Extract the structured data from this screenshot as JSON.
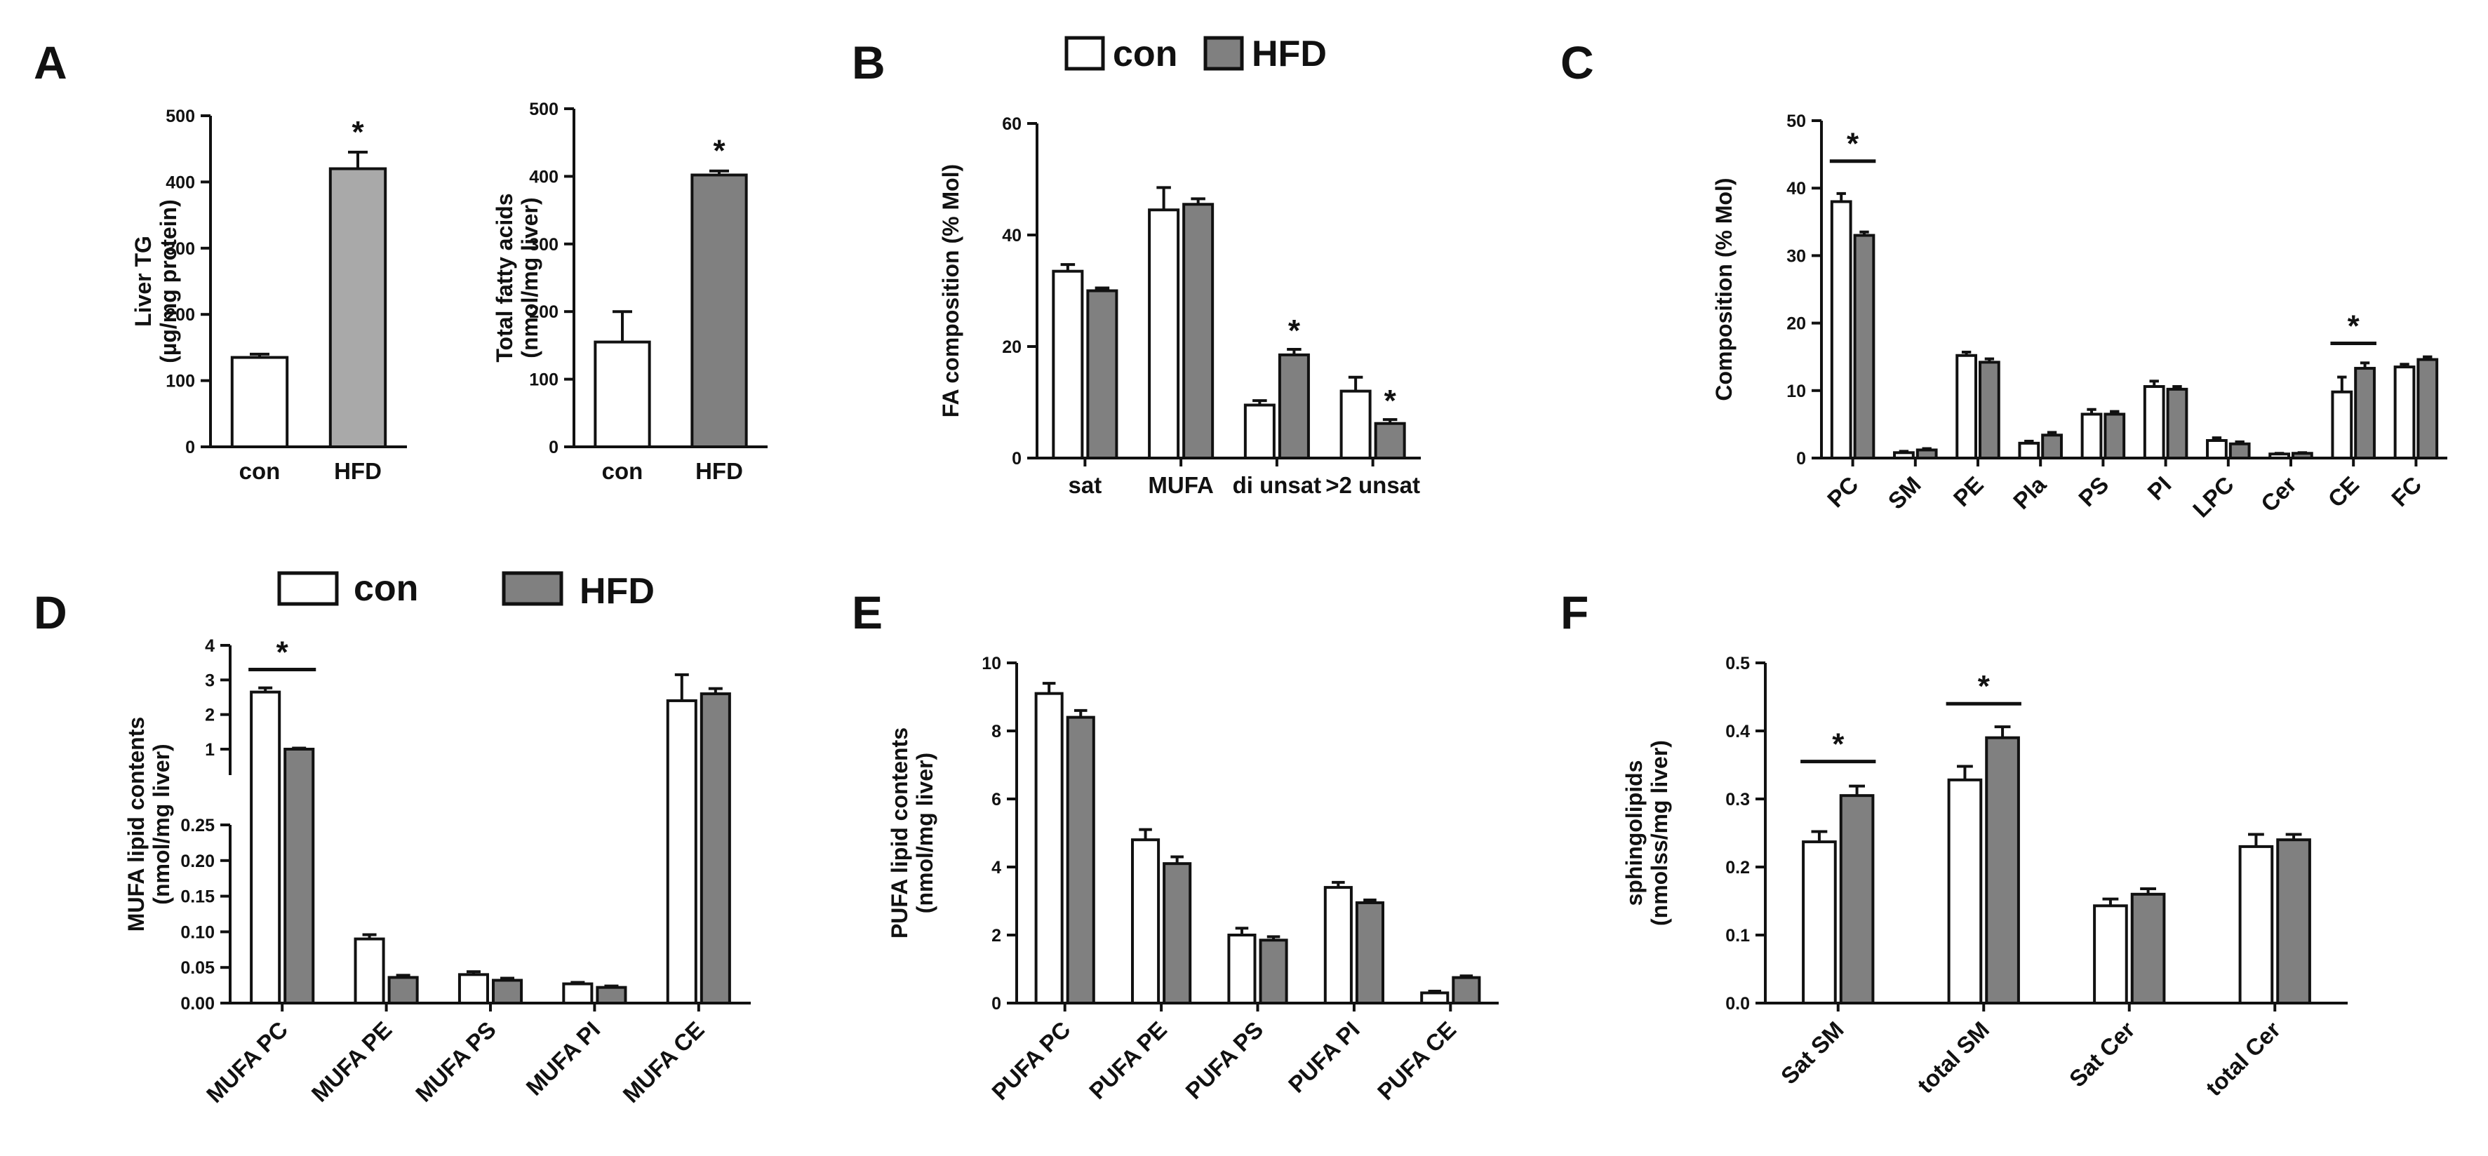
{
  "colors": {
    "con_fill": "#ffffff",
    "hfd_fill_a": "#a9a9a9",
    "hfd_fill": "#808080",
    "stroke": "#111111",
    "background": "#ffffff"
  },
  "legend": {
    "con": "con",
    "hfd": "HFD"
  },
  "significance_marker": "*",
  "chart_data": [
    {
      "id": "A1",
      "panel": "A",
      "type": "bar",
      "ylabel_lines": [
        "Liver TG",
        "(µg/mg protein)"
      ],
      "ylim": [
        0,
        500
      ],
      "yticks": [
        0,
        100,
        200,
        300,
        400,
        500
      ],
      "categories": [
        "con",
        "HFD"
      ],
      "values": [
        135,
        420
      ],
      "errors": [
        5,
        25
      ],
      "significant": [
        false,
        true
      ]
    },
    {
      "id": "A2",
      "type": "bar",
      "ylabel_lines": [
        "Total fatty acids",
        "(nmol/mg liver)"
      ],
      "ylim": [
        0,
        500
      ],
      "yticks": [
        0,
        100,
        200,
        300,
        400,
        500
      ],
      "categories": [
        "con",
        "HFD"
      ],
      "values": [
        155,
        402
      ],
      "errors": [
        45,
        6
      ],
      "significant": [
        false,
        true
      ]
    },
    {
      "id": "B",
      "panel": "B",
      "type": "bar",
      "ylabel_lines": [
        "FA composition (% Mol)"
      ],
      "ylim": [
        0,
        60
      ],
      "yticks": [
        0,
        20,
        40,
        60
      ],
      "categories": [
        "sat",
        "MUFA",
        "di unsat",
        ">2 unsat"
      ],
      "series": [
        {
          "name": "con",
          "values": [
            33.5,
            44.5,
            9.5,
            12
          ],
          "errors": [
            1.2,
            4,
            0.8,
            2.5
          ]
        },
        {
          "name": "HFD",
          "values": [
            30,
            45.5,
            18.5,
            6.2
          ],
          "errors": [
            0.5,
            1,
            1,
            0.7
          ]
        }
      ],
      "stars": [
        {
          "category": 2,
          "series": 1
        },
        {
          "category": 3,
          "series": 1
        }
      ]
    },
    {
      "id": "C",
      "panel": "C",
      "type": "bar",
      "ylabel_lines": [
        "Composition (% Mol)"
      ],
      "ylim": [
        0,
        50
      ],
      "yticks": [
        0,
        10,
        20,
        30,
        40,
        50
      ],
      "categories": [
        "PC",
        "SM",
        "PE",
        "Pla",
        "PS",
        "PI",
        "LPC",
        "Cer",
        "CE",
        "FC"
      ],
      "series": [
        {
          "name": "con",
          "values": [
            38,
            0.8,
            15.2,
            2.2,
            6.5,
            10.6,
            2.6,
            0.6,
            9.8,
            13.5
          ],
          "errors": [
            1.2,
            0.2,
            0.5,
            0.3,
            0.7,
            0.8,
            0.4,
            0.1,
            2.2,
            0.4
          ]
        },
        {
          "name": "HFD",
          "values": [
            33,
            1.2,
            14.2,
            3.4,
            6.5,
            10.2,
            2.1,
            0.7,
            13.3,
            14.6
          ],
          "errors": [
            0.5,
            0.2,
            0.5,
            0.4,
            0.4,
            0.4,
            0.3,
            0.1,
            0.8,
            0.4
          ]
        }
      ],
      "sig_bars": [
        {
          "category": 0,
          "level": 44
        },
        {
          "category": 8,
          "level": 17
        }
      ]
    },
    {
      "id": "D",
      "panel": "D",
      "type": "bar",
      "ylabel_lines": [
        "MUFA lipid contents",
        "(nmol/mg liver)"
      ],
      "axis_break": {
        "lower_range": [
          0,
          0.25
        ],
        "upper_range": [
          0.25,
          4
        ]
      },
      "yticks_lower": [
        0.0,
        0.05,
        0.1,
        0.15,
        0.2,
        0.25
      ],
      "ytick_lower_labels": [
        "0.00",
        "0.05",
        "0.10",
        "0.15",
        "0.20",
        "0.25"
      ],
      "yticks_upper": [
        1,
        2,
        3,
        4
      ],
      "categories": [
        "MUFA PC",
        "MUFA PE",
        "MUFA PS",
        "MUFA PI",
        "MUFA CE"
      ],
      "series": [
        {
          "name": "con",
          "values": [
            2.65,
            0.09,
            0.04,
            0.027,
            2.4
          ],
          "errors": [
            0.12,
            0.006,
            0.004,
            0.002,
            0.75
          ]
        },
        {
          "name": "HFD",
          "values": [
            1.0,
            0.036,
            0.032,
            0.022,
            2.6
          ],
          "errors": [
            0.03,
            0.003,
            0.003,
            0.002,
            0.15
          ]
        }
      ],
      "sig_bars": [
        {
          "category": 0,
          "level": 3.3
        }
      ]
    },
    {
      "id": "E",
      "panel": "E",
      "type": "bar",
      "ylabel_lines": [
        "PUFA lipid contents",
        "(nmol/mg liver)"
      ],
      "ylim": [
        0,
        10
      ],
      "yticks": [
        0,
        2,
        4,
        6,
        8,
        10
      ],
      "categories": [
        "PUFA PC",
        "PUFA PE",
        "PUFA PS",
        "PUFA PI",
        "PUFA CE"
      ],
      "series": [
        {
          "name": "con",
          "values": [
            9.1,
            4.8,
            2.0,
            3.4,
            0.3
          ],
          "errors": [
            0.3,
            0.3,
            0.2,
            0.15,
            0.05
          ]
        },
        {
          "name": "HFD",
          "values": [
            8.4,
            4.1,
            1.85,
            2.95,
            0.75
          ],
          "errors": [
            0.2,
            0.2,
            0.1,
            0.08,
            0.05
          ]
        }
      ]
    },
    {
      "id": "F",
      "panel": "F",
      "type": "bar",
      "ylabel_lines": [
        "sphingolipids",
        "(nmolss/mg liver)"
      ],
      "ylim": [
        0,
        0.5
      ],
      "yticks": [
        0.0,
        0.1,
        0.2,
        0.3,
        0.4,
        0.5
      ],
      "ytick_labels": [
        "0.0",
        "0.1",
        "0.2",
        "0.3",
        "0.4",
        "0.5"
      ],
      "categories": [
        "Sat SM",
        "total SM",
        "Sat Cer",
        "total Cer"
      ],
      "series": [
        {
          "name": "con",
          "values": [
            0.237,
            0.328,
            0.143,
            0.23
          ],
          "errors": [
            0.015,
            0.02,
            0.01,
            0.018
          ]
        },
        {
          "name": "HFD",
          "values": [
            0.305,
            0.39,
            0.16,
            0.24
          ],
          "errors": [
            0.014,
            0.016,
            0.008,
            0.008
          ]
        }
      ],
      "sig_bars": [
        {
          "category": 0,
          "level": 0.355
        },
        {
          "category": 1,
          "level": 0.44
        }
      ]
    }
  ]
}
